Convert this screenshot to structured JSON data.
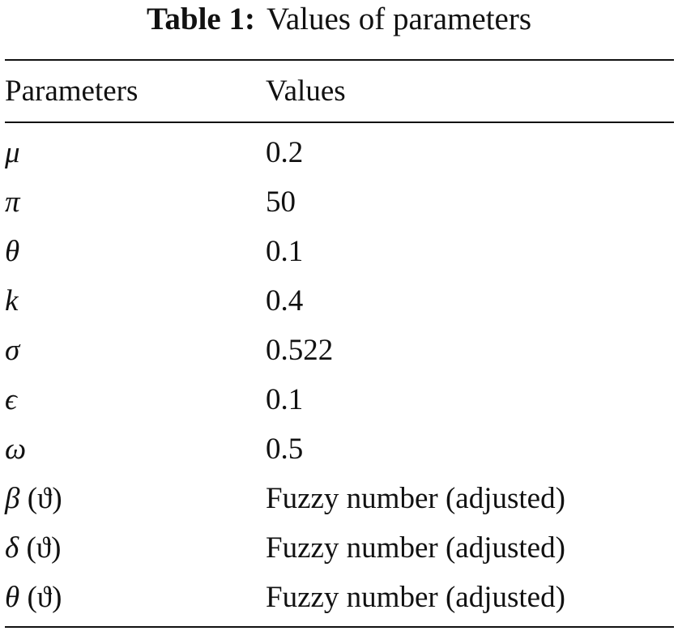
{
  "caption": {
    "label": "Table 1:",
    "title": "Values of parameters"
  },
  "table": {
    "headers": {
      "parameters": "Parameters",
      "values": "Values"
    },
    "rows": [
      {
        "symbol": "μ",
        "suffix": "",
        "value": "0.2"
      },
      {
        "symbol": "π",
        "suffix": "",
        "value": "50"
      },
      {
        "symbol": "θ",
        "suffix": "",
        "value": "0.1"
      },
      {
        "symbol": "k",
        "suffix": "",
        "value": "0.4"
      },
      {
        "symbol": "σ",
        "suffix": "",
        "value": "0.522"
      },
      {
        "symbol": "ϵ",
        "suffix": "",
        "value": "0.1"
      },
      {
        "symbol": "ω",
        "suffix": "",
        "value": "0.5"
      },
      {
        "symbol": "β",
        "suffix": " (ϑ)",
        "value": "Fuzzy number (adjusted)"
      },
      {
        "symbol": "δ",
        "suffix": " (ϑ)",
        "value": "Fuzzy number (adjusted)"
      },
      {
        "symbol": "θ",
        "suffix": " (ϑ)",
        "value": "Fuzzy number (adjusted)"
      }
    ]
  }
}
